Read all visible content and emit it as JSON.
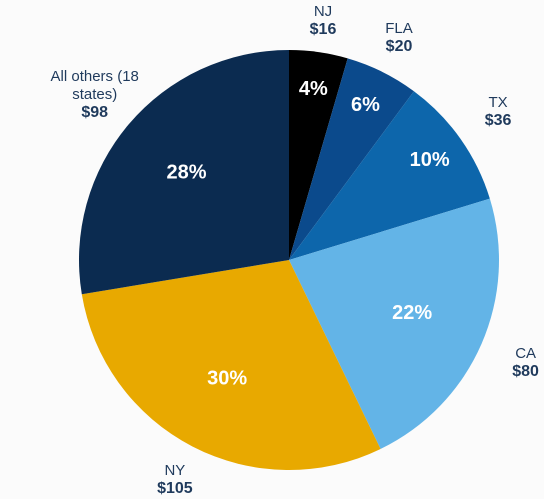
{
  "chart_data": {
    "type": "pie",
    "categories": [
      "NJ",
      "FLA",
      "TX",
      "CA",
      "NY",
      "All others (18 states)"
    ],
    "values": [
      16,
      20,
      36,
      80,
      105,
      98
    ],
    "value_labels": [
      "$16",
      "$20",
      "$36",
      "$80",
      "$105",
      "$98"
    ],
    "percent_labels": [
      "4%",
      "6%",
      "10%",
      "22%",
      "30%",
      "28%"
    ],
    "colors": [
      "#000000",
      "#0b4a8c",
      "#0d66ab",
      "#63b4e7",
      "#e8a900",
      "#0b2b50"
    ]
  }
}
